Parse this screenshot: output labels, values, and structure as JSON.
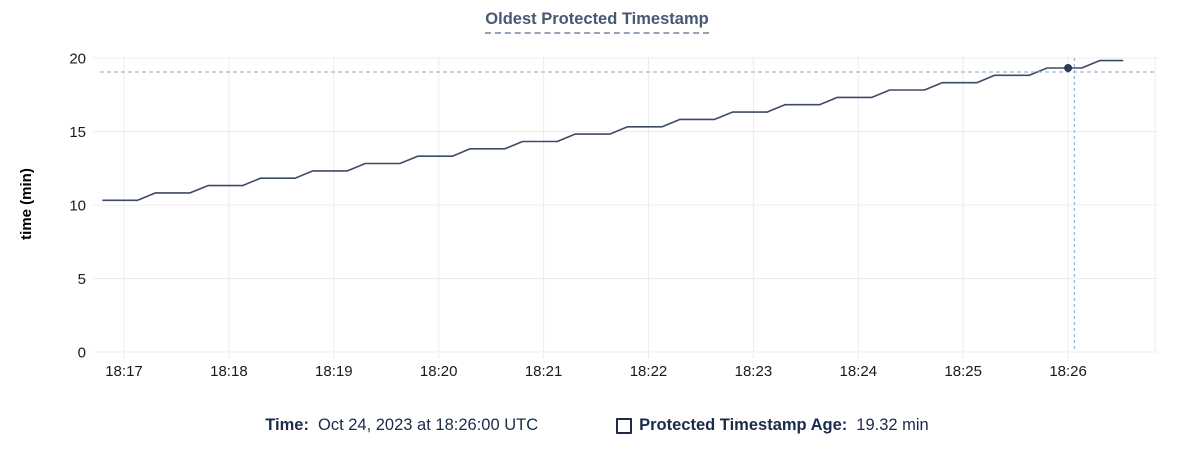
{
  "title": "Oldest Protected Timestamp",
  "colors": {
    "background": "#ffffff",
    "title": "#475872",
    "title_underline": "#95a3b8",
    "series_line": "#3d4b66",
    "hover_dot": "#2c3a55",
    "crosshair": "#9fb9cc",
    "gridline": "#ececec",
    "axis_text": "#1a1a1a",
    "legend_text": "#1b2b4a"
  },
  "chart_data": {
    "type": "line",
    "title": "Oldest Protected Timestamp",
    "xlabel": "",
    "ylabel": "time (min)",
    "ylim": [
      0,
      20
    ],
    "yticks": [
      0,
      5,
      10,
      15,
      20
    ],
    "grid": true,
    "x_unit": "minutes after 18:00 UTC",
    "xlim": [
      16.72,
      26.84
    ],
    "xticks": [
      {
        "t": 17,
        "label": "18:17"
      },
      {
        "t": 18,
        "label": "18:18"
      },
      {
        "t": 19,
        "label": "18:19"
      },
      {
        "t": 20,
        "label": "18:20"
      },
      {
        "t": 21,
        "label": "18:21"
      },
      {
        "t": 22,
        "label": "18:22"
      },
      {
        "t": 23,
        "label": "18:23"
      },
      {
        "t": 24,
        "label": "18:24"
      },
      {
        "t": 25,
        "label": "18:25"
      },
      {
        "t": 26,
        "label": "18:26"
      }
    ],
    "series": [
      {
        "name": "Protected Timestamp Age",
        "unit": "min",
        "points": [
          [
            16.8,
            10.32
          ],
          [
            17.13,
            10.32
          ],
          [
            17.3,
            10.82
          ],
          [
            17.63,
            10.82
          ],
          [
            17.8,
            11.32
          ],
          [
            18.13,
            11.32
          ],
          [
            18.3,
            11.82
          ],
          [
            18.63,
            11.82
          ],
          [
            18.8,
            12.32
          ],
          [
            19.13,
            12.32
          ],
          [
            19.3,
            12.82
          ],
          [
            19.63,
            12.82
          ],
          [
            19.8,
            13.32
          ],
          [
            20.13,
            13.32
          ],
          [
            20.3,
            13.82
          ],
          [
            20.63,
            13.82
          ],
          [
            20.8,
            14.32
          ],
          [
            21.13,
            14.32
          ],
          [
            21.3,
            14.82
          ],
          [
            21.63,
            14.82
          ],
          [
            21.8,
            15.32
          ],
          [
            22.13,
            15.32
          ],
          [
            22.3,
            15.82
          ],
          [
            22.63,
            15.82
          ],
          [
            22.8,
            16.32
          ],
          [
            23.13,
            16.32
          ],
          [
            23.3,
            16.82
          ],
          [
            23.63,
            16.82
          ],
          [
            23.8,
            17.32
          ],
          [
            24.13,
            17.32
          ],
          [
            24.3,
            17.82
          ],
          [
            24.63,
            17.82
          ],
          [
            24.8,
            18.32
          ],
          [
            25.13,
            18.32
          ],
          [
            25.3,
            18.82
          ],
          [
            25.63,
            18.82
          ],
          [
            25.8,
            19.32
          ],
          [
            26.13,
            19.32
          ],
          [
            26.3,
            19.82
          ],
          [
            26.52,
            19.82
          ]
        ]
      }
    ],
    "hover": {
      "point_x": 26.0,
      "point_x_label": "Oct 24, 2023 at 18:26:00 UTC",
      "point_value": 19.32,
      "crosshair_x": 26.06,
      "crosshair_value": 19.05
    },
    "legend_position": "bottom-center"
  },
  "legend": {
    "time_label": "Time:",
    "time_value": "Oct 24, 2023 at 18:26:00 UTC",
    "series_label": "Protected Timestamp Age:",
    "series_value": "19.32 min"
  }
}
